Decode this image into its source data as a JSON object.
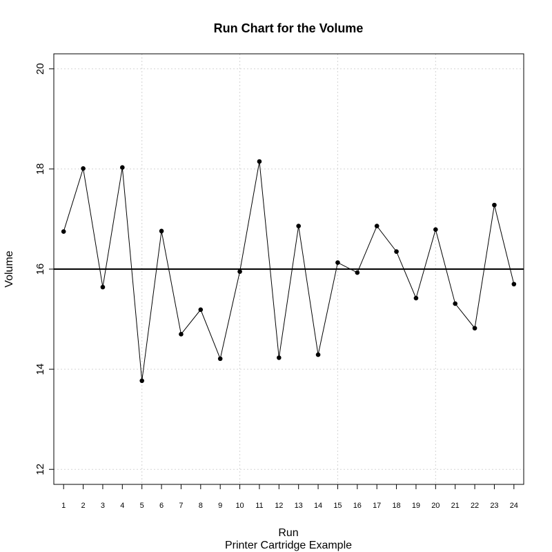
{
  "chart_data": {
    "type": "line",
    "title": "Run Chart for the Volume",
    "xlabel": "Run",
    "subtitle": "Printer Cartridge Example",
    "ylabel": "Volume",
    "x": [
      1,
      2,
      3,
      4,
      5,
      6,
      7,
      8,
      9,
      10,
      11,
      12,
      13,
      14,
      15,
      16,
      17,
      18,
      19,
      20,
      21,
      22,
      23,
      24
    ],
    "xtick_labels": [
      "1",
      "2",
      "3",
      "4",
      "5",
      "6",
      "7",
      "8",
      "9",
      "10",
      "11",
      "12",
      "13",
      "14",
      "15",
      "16",
      "17",
      "18",
      "19",
      "20",
      "21",
      "22",
      "23",
      "24"
    ],
    "series": [
      {
        "values": [
          16.75,
          18.01,
          15.64,
          18.03,
          13.77,
          16.76,
          14.7,
          15.19,
          14.21,
          15.95,
          18.15,
          14.23,
          16.86,
          14.29,
          16.13,
          15.93,
          16.86,
          16.35,
          15.42,
          16.79,
          15.31,
          14.82,
          17.28,
          15.7
        ],
        "color": "#000000",
        "markers": true
      }
    ],
    "center_line": 16,
    "xlim": [
      0.5,
      24.5
    ],
    "ylim": [
      11.7,
      20.3
    ],
    "yticks": [
      12,
      14,
      16,
      18,
      20
    ],
    "ytick_labels": [
      "12",
      "14",
      "16",
      "18",
      "20"
    ],
    "grid_x": [
      5,
      10,
      15,
      20
    ],
    "grid_y": [
      12,
      14,
      16,
      18,
      20
    ],
    "grid": true,
    "legend": "none"
  }
}
